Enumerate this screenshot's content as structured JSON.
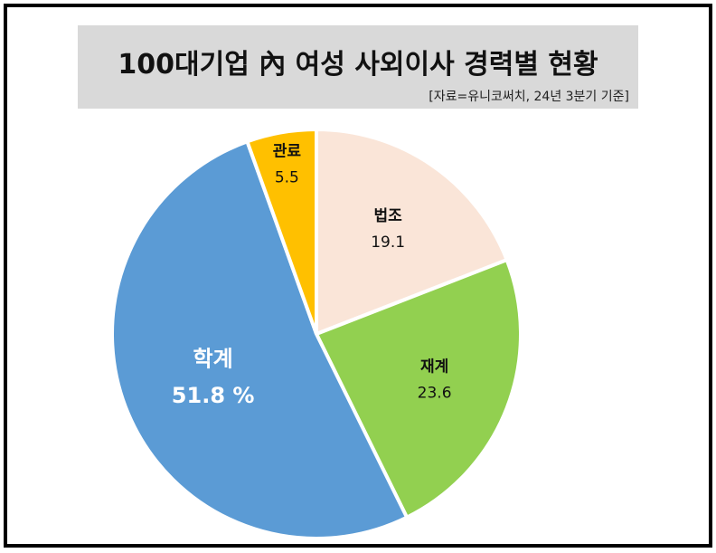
{
  "header": {
    "title": "100대기업 內 여성 사외이사 경력별 현황",
    "source": "[자료=유니코써치, 24년 3분기 기준]"
  },
  "chart_data": {
    "type": "pie",
    "title": "100대기업 內 여성 사외이사 경력별 현황",
    "subtitle": "[자료=유니코써치, 24년 3분기 기준]",
    "slices": [
      {
        "label": "법조",
        "value": 19.1,
        "value_text": "19.1",
        "color": "#fae5d8"
      },
      {
        "label": "재계",
        "value": 23.6,
        "value_text": "23.6",
        "color": "#92d050"
      },
      {
        "label": "학계",
        "value": 51.8,
        "value_text": "51.8 %",
        "color": "#5b9bd5"
      },
      {
        "label": "관료",
        "value": 5.5,
        "value_text": "5.5",
        "color": "#ffc000"
      }
    ],
    "start_angle_deg": 0,
    "direction": "clockwise",
    "label_color_dark": "#111111",
    "label_color_light": "#ffffff"
  }
}
